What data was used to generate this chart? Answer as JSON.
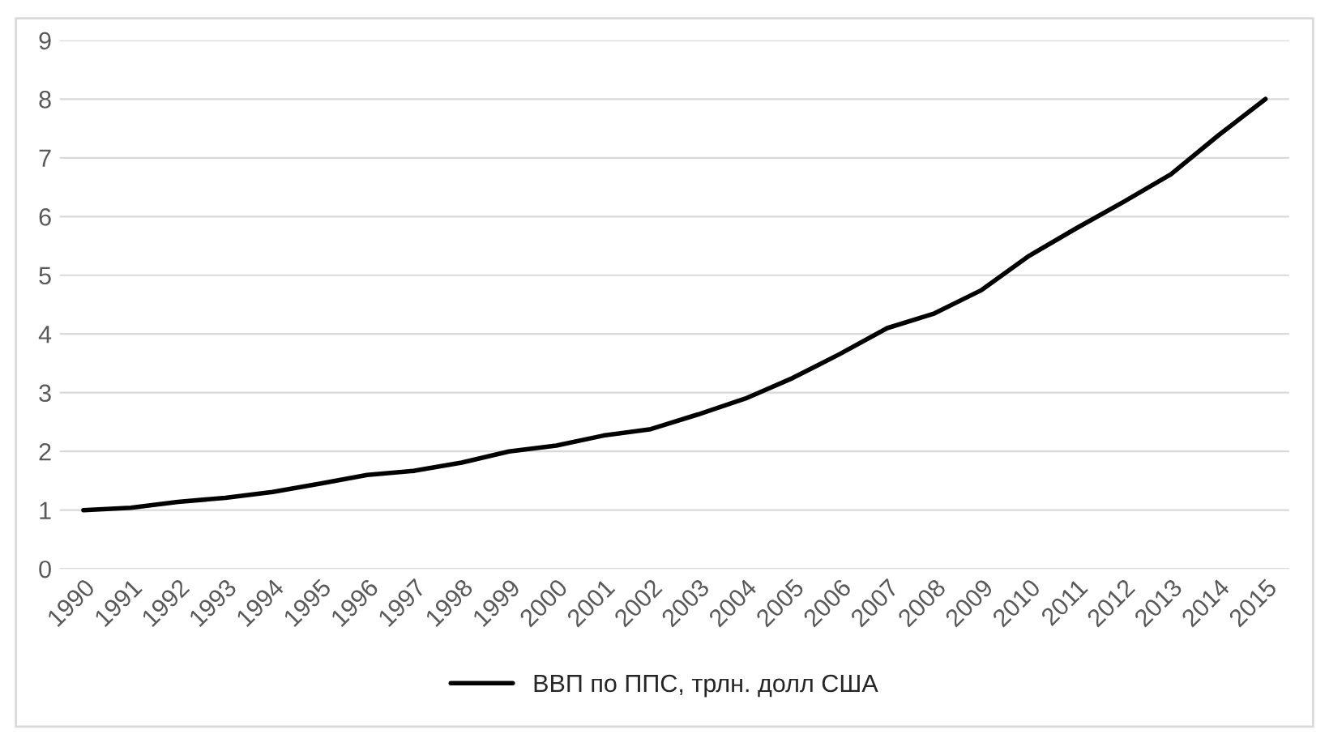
{
  "chart_data": {
    "type": "line",
    "categories": [
      "1990",
      "1991",
      "1992",
      "1993",
      "1994",
      "1995",
      "1996",
      "1997",
      "1998",
      "1999",
      "2000",
      "2001",
      "2002",
      "2003",
      "2004",
      "2005",
      "2006",
      "2007",
      "2008",
      "2009",
      "2010",
      "2011",
      "2012",
      "2013",
      "2014",
      "2015"
    ],
    "series": [
      {
        "name": "ВВП по ППС, трлн. долл США",
        "color": "#000000",
        "values": [
          1.0,
          1.04,
          1.14,
          1.21,
          1.31,
          1.45,
          1.6,
          1.67,
          1.81,
          2.0,
          2.1,
          2.27,
          2.38,
          2.63,
          2.9,
          3.25,
          3.66,
          4.1,
          4.35,
          4.75,
          5.33,
          5.8,
          6.25,
          6.72,
          7.38,
          8.0
        ]
      }
    ],
    "ylim": [
      0,
      9
    ],
    "yticks": [
      0,
      1,
      2,
      3,
      4,
      5,
      6,
      7,
      8,
      9
    ],
    "grid": "y",
    "legend": "bottom"
  }
}
